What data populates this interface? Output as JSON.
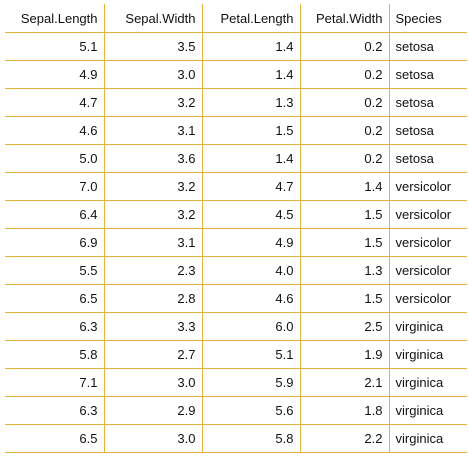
{
  "table": {
    "border_color": "#e6b33a",
    "columns": [
      "Sepal.Length",
      "Sepal.Width",
      "Petal.Length",
      "Petal.Width",
      "Species"
    ],
    "rows": [
      [
        "5.1",
        "3.5",
        "1.4",
        "0.2",
        "setosa"
      ],
      [
        "4.9",
        "3.0",
        "1.4",
        "0.2",
        "setosa"
      ],
      [
        "4.7",
        "3.2",
        "1.3",
        "0.2",
        "setosa"
      ],
      [
        "4.6",
        "3.1",
        "1.5",
        "0.2",
        "setosa"
      ],
      [
        "5.0",
        "3.6",
        "1.4",
        "0.2",
        "setosa"
      ],
      [
        "7.0",
        "3.2",
        "4.7",
        "1.4",
        "versicolor"
      ],
      [
        "6.4",
        "3.2",
        "4.5",
        "1.5",
        "versicolor"
      ],
      [
        "6.9",
        "3.1",
        "4.9",
        "1.5",
        "versicolor"
      ],
      [
        "5.5",
        "2.3",
        "4.0",
        "1.3",
        "versicolor"
      ],
      [
        "6.5",
        "2.8",
        "4.6",
        "1.5",
        "versicolor"
      ],
      [
        "6.3",
        "3.3",
        "6.0",
        "2.5",
        "virginica"
      ],
      [
        "5.8",
        "2.7",
        "5.1",
        "1.9",
        "virginica"
      ],
      [
        "7.1",
        "3.0",
        "5.9",
        "2.1",
        "virginica"
      ],
      [
        "6.3",
        "2.9",
        "5.6",
        "1.8",
        "virginica"
      ],
      [
        "6.5",
        "3.0",
        "5.8",
        "2.2",
        "virginica"
      ]
    ]
  }
}
